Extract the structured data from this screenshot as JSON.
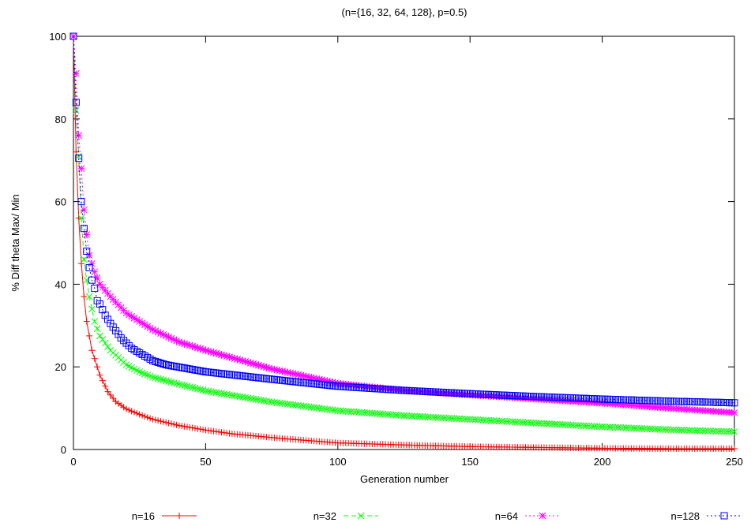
{
  "chart_data": {
    "type": "line",
    "title": "(n={16, 32, 64, 128}, p=0.5)",
    "xlabel": "Generation number",
    "ylabel": "% Diff theta Max/ Min",
    "xlim": [
      0,
      250
    ],
    "ylim": [
      0,
      100
    ],
    "x_ticks": [
      0,
      50,
      100,
      150,
      200,
      250
    ],
    "y_ticks": [
      0,
      20,
      40,
      60,
      80,
      100
    ],
    "grid": false,
    "legend_position": "bottom",
    "series": [
      {
        "name": "n=16",
        "color": "#ff0000",
        "marker": "plus",
        "dash": "solid",
        "points": [
          [
            0,
            100
          ],
          [
            1,
            72
          ],
          [
            2,
            56
          ],
          [
            3,
            45
          ],
          [
            4,
            37
          ],
          [
            5,
            31
          ],
          [
            7,
            24
          ],
          [
            10,
            18
          ],
          [
            13,
            14
          ],
          [
            16,
            11.6
          ],
          [
            20,
            9.8
          ],
          [
            25,
            8.5
          ],
          [
            30,
            7.3
          ],
          [
            40,
            5.8
          ],
          [
            50,
            4.7
          ],
          [
            60,
            3.8
          ],
          [
            80,
            2.6
          ],
          [
            100,
            1.6
          ],
          [
            125,
            1.1
          ],
          [
            150,
            0.7
          ],
          [
            175,
            0.5
          ],
          [
            200,
            0.3
          ],
          [
            225,
            0.2
          ],
          [
            250,
            0.2
          ]
        ]
      },
      {
        "name": "n=32",
        "color": "#00ff00",
        "marker": "cross",
        "dash": "dashed",
        "points": [
          [
            0,
            100
          ],
          [
            1,
            82
          ],
          [
            2,
            71
          ],
          [
            3,
            56
          ],
          [
            4,
            46
          ],
          [
            5,
            41
          ],
          [
            6,
            37
          ],
          [
            8,
            31
          ],
          [
            10,
            27.5
          ],
          [
            14,
            24
          ],
          [
            20,
            20.5
          ],
          [
            25,
            18.8
          ],
          [
            30,
            17.5
          ],
          [
            40,
            15.8
          ],
          [
            50,
            14.2
          ],
          [
            75,
            11.5
          ],
          [
            100,
            9.4
          ],
          [
            125,
            8.2
          ],
          [
            150,
            7.3
          ],
          [
            175,
            6.4
          ],
          [
            200,
            5.5
          ],
          [
            225,
            4.8
          ],
          [
            250,
            4.3
          ]
        ]
      },
      {
        "name": "n=64",
        "color": "#ff00ff",
        "marker": "star",
        "dash": "dotted",
        "points": [
          [
            0,
            100
          ],
          [
            1,
            91
          ],
          [
            2,
            76
          ],
          [
            3,
            68
          ],
          [
            4,
            58
          ],
          [
            5,
            52
          ],
          [
            6,
            47
          ],
          [
            8,
            43
          ],
          [
            10,
            40
          ],
          [
            14,
            37
          ],
          [
            20,
            33
          ],
          [
            25,
            31
          ],
          [
            30,
            29
          ],
          [
            40,
            26
          ],
          [
            50,
            24
          ],
          [
            75,
            19.5
          ],
          [
            100,
            16
          ],
          [
            125,
            14.3
          ],
          [
            150,
            13.2
          ],
          [
            175,
            12.2
          ],
          [
            200,
            11.2
          ],
          [
            225,
            10
          ],
          [
            250,
            8.9
          ]
        ]
      },
      {
        "name": "n=128",
        "color": "#0000ff",
        "marker": "square",
        "dash": "dotted",
        "points": [
          [
            0,
            100
          ],
          [
            1,
            84
          ],
          [
            2,
            70.5
          ],
          [
            3,
            60
          ],
          [
            4,
            53.5
          ],
          [
            5,
            48
          ],
          [
            6,
            44
          ],
          [
            7,
            41
          ],
          [
            8,
            39
          ],
          [
            9,
            36
          ],
          [
            10,
            35.2
          ],
          [
            12,
            32.5
          ],
          [
            14,
            30.5
          ],
          [
            18,
            27
          ],
          [
            22,
            24.5
          ],
          [
            26,
            23
          ],
          [
            30,
            21.5
          ],
          [
            35,
            20.5
          ],
          [
            50,
            18.8
          ],
          [
            75,
            17
          ],
          [
            100,
            15.3
          ],
          [
            125,
            14.3
          ],
          [
            150,
            13.5
          ],
          [
            175,
            12.8
          ],
          [
            200,
            12.2
          ],
          [
            225,
            11.7
          ],
          [
            250,
            11.3
          ]
        ]
      }
    ]
  }
}
